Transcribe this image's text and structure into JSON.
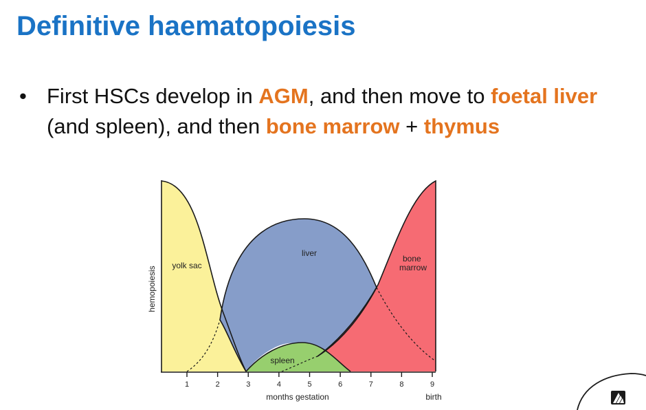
{
  "title": "Definitive haematopoiesis",
  "bullet": {
    "marker": "•",
    "parts": [
      {
        "text": "First HSCs develop in ",
        "emphasis": false
      },
      {
        "text": "AGM",
        "emphasis": true
      },
      {
        "text": ", and then move to ",
        "emphasis": false
      },
      {
        "text": "foetal liver",
        "emphasis": true
      },
      {
        "text": " (and spleen), and then ",
        "emphasis": false
      },
      {
        "text": "bone marrow",
        "emphasis": true
      },
      {
        "text": " + ",
        "emphasis": false
      },
      {
        "text": "thymus",
        "emphasis": true
      }
    ]
  },
  "diagram": {
    "y_axis_label": "hemopoiesis",
    "x_axis_label": "months gestation",
    "ticks": [
      "1",
      "2",
      "3",
      "4",
      "5",
      "6",
      "7",
      "8",
      "9"
    ],
    "end_label": "birth",
    "regions": [
      {
        "id": "yolk-sac",
        "label": "yolk sac",
        "color": "#fbf19a"
      },
      {
        "id": "liver",
        "label": "liver",
        "color": "#869dc9"
      },
      {
        "id": "spleen",
        "label": "spleen",
        "color": "#97cf6e"
      },
      {
        "id": "bone-marrow",
        "label": "bone\nmarrow",
        "color": "#f66b73"
      }
    ]
  },
  "logo": {
    "icon": "university-logo-icon"
  }
}
